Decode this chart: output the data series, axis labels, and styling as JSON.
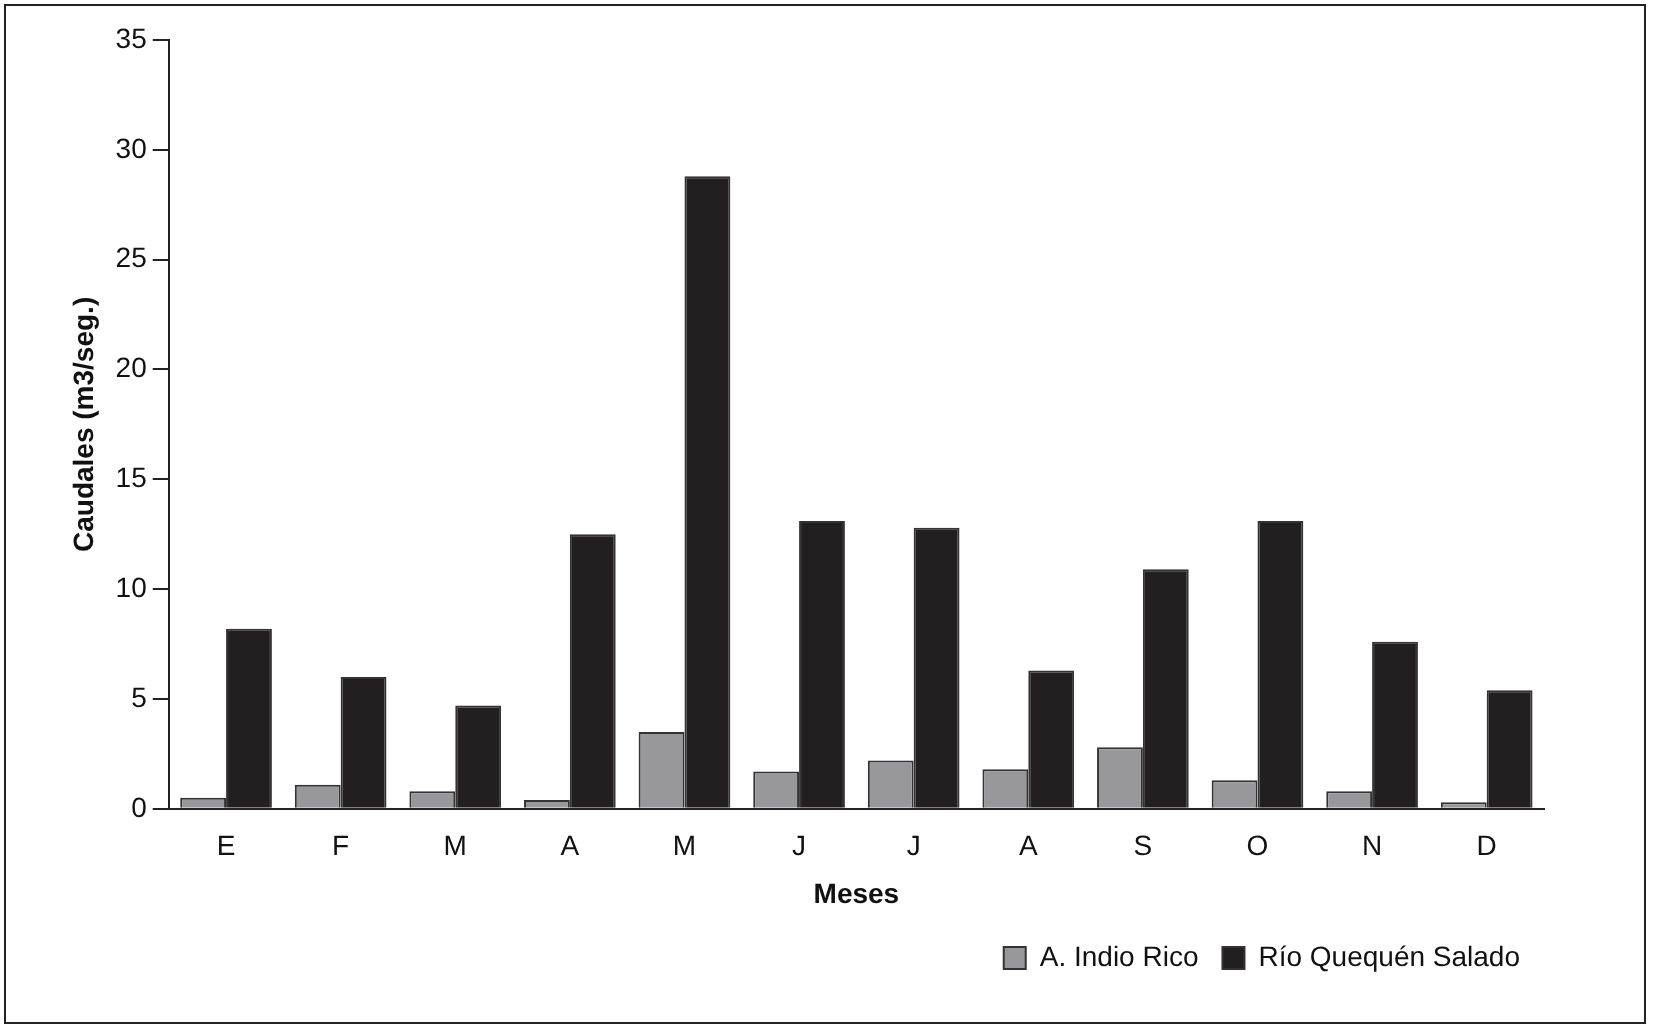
{
  "chart_data": {
    "type": "bar",
    "xlabel": "Meses",
    "ylabel": "Caudales (m3/seg.)",
    "categories": [
      "E",
      "F",
      "M",
      "A",
      "M",
      "J",
      "J",
      "A",
      "S",
      "O",
      "N",
      "D"
    ],
    "series": [
      {
        "name": "A. Indio Rico",
        "color": "#98989c",
        "values": [
          0.5,
          1.1,
          0.8,
          0.4,
          3.5,
          1.7,
          2.2,
          1.8,
          2.8,
          1.3,
          0.8,
          0.3
        ]
      },
      {
        "name": "Río Quequén Salado",
        "color": "#231f20",
        "values": [
          8.2,
          6.0,
          4.7,
          12.5,
          28.8,
          13.1,
          12.8,
          6.3,
          10.9,
          13.1,
          7.6,
          5.4
        ]
      }
    ],
    "ylim": [
      0,
      35
    ],
    "yticks": [
      0,
      5,
      10,
      15,
      20,
      25,
      30,
      35
    ],
    "grid": false,
    "legend": "bottom"
  }
}
